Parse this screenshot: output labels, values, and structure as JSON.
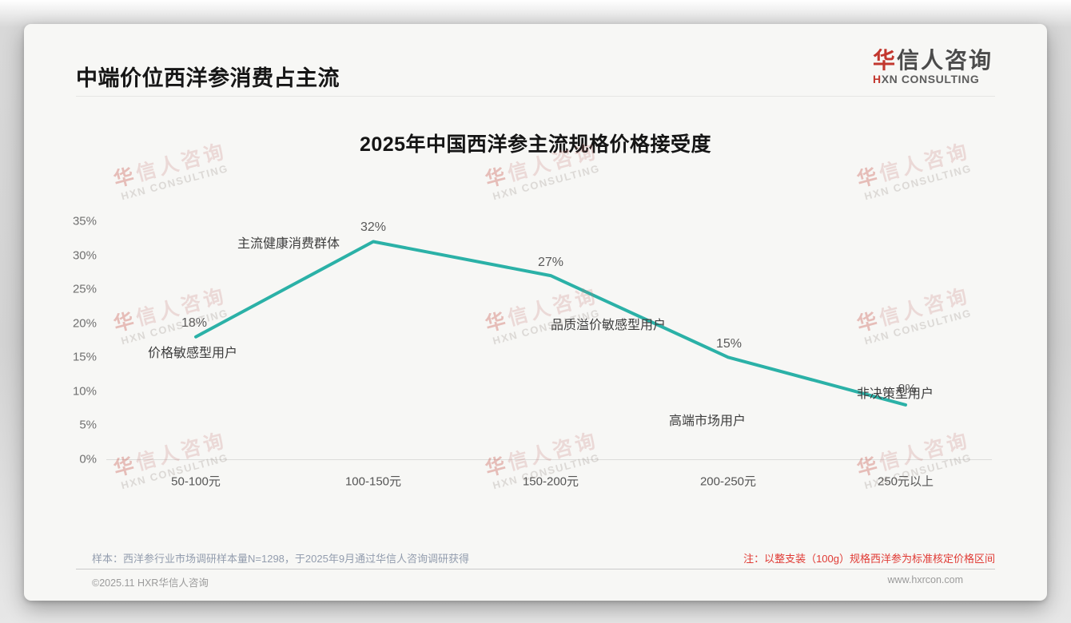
{
  "slide": {
    "title": "中端价位西洋参消费占主流",
    "logo": {
      "cn_first": "华",
      "cn_rest": "信人咨询",
      "en_first": "H",
      "en_rest": "XN CONSULTING"
    },
    "watermark": {
      "cn_first": "华",
      "cn_rest": "信人咨询",
      "en": "HXN CONSULTING"
    }
  },
  "chart_data": {
    "type": "line",
    "title": "2025年中国西洋参主流规格价格接受度",
    "categories": [
      "50-100元",
      "100-150元",
      "150-200元",
      "200-250元",
      "250元以上"
    ],
    "values": [
      18,
      32,
      27,
      15,
      8
    ],
    "value_suffix": "%",
    "point_labels": [
      "价格敏感型用户",
      "主流健康消费群体",
      "品质溢价敏感型用户",
      "高端市场用户",
      "非决策型用户"
    ],
    "yticks": [
      "35%",
      "30%",
      "25%",
      "20%",
      "15%",
      "10%",
      "5%",
      "0%"
    ],
    "ylim": [
      0,
      35
    ],
    "xlabel": "",
    "ylabel": "",
    "line_color": "#2BB1A7",
    "grid": "baseline-only",
    "legend": "none"
  },
  "footer": {
    "sample_note": "样本：西洋参行业市场调研样本量N=1298，于2025年9月通过华信人咨询调研获得",
    "price_note": "注：以整支装（100g）规格西洋参为标准核定价格区间",
    "copyright": "©2025.11 HXR华信人咨询",
    "website": "www.hxrcon.com"
  }
}
